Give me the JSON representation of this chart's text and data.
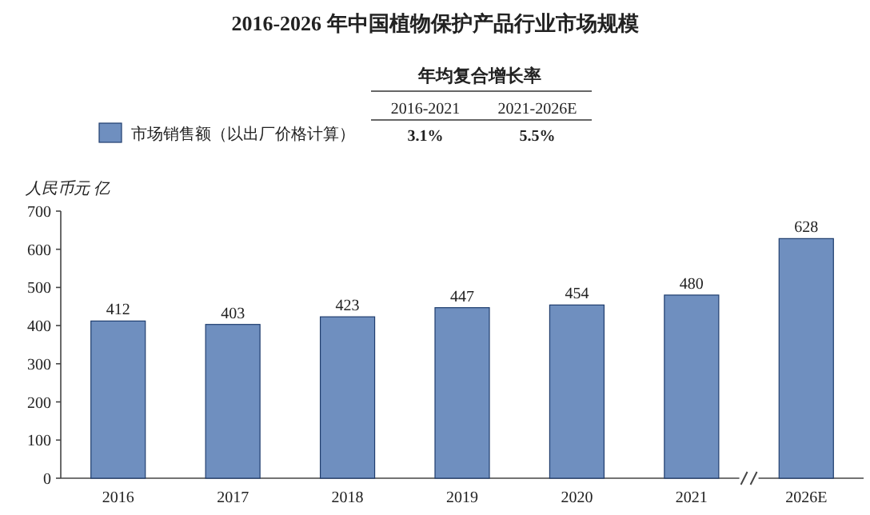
{
  "chart_data": {
    "type": "bar",
    "title": "2016-2026 年中国植物保护产品行业市场规模",
    "ylabel": "人民币元 亿",
    "categories": [
      "2016",
      "2017",
      "2018",
      "2019",
      "2020",
      "2021",
      "2026E"
    ],
    "series": [
      {
        "name": "市场销售额（以出厂价格计算）",
        "color": "#6f8fbf",
        "values": [
          412,
          403,
          423,
          447,
          454,
          480,
          628
        ]
      }
    ],
    "ylim": [
      0,
      700
    ],
    "yticks": [
      0,
      100,
      200,
      300,
      400,
      500,
      600,
      700
    ],
    "data_labels": true,
    "grid": false,
    "legend": "top left",
    "annotations": [
      "年均复合增长率",
      "2016-2021",
      "2021-2026E",
      "3.1%",
      "5.5%"
    ]
  }
}
